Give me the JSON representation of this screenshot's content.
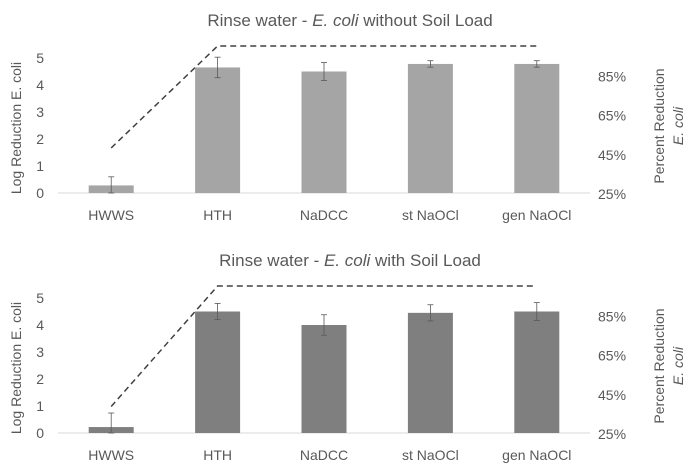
{
  "chart_data": [
    {
      "type": "bar",
      "title_prefix": "Rinse water - ",
      "title_italic": "E. coli",
      "title_suffix": " without Soil Load",
      "categories": [
        "HWWS",
        "HTH",
        "NaDCC",
        "st NaOCl",
        "gen NaOCl"
      ],
      "values": [
        0.28,
        4.65,
        4.5,
        4.78,
        4.78
      ],
      "errors": [
        0.32,
        0.38,
        0.33,
        0.12,
        0.12
      ],
      "bar_color": "#a5a5a5",
      "ylabel": "Log Reduction E. coli",
      "ylim": [
        0,
        5.5
      ],
      "yticks": [
        0,
        1,
        2,
        3,
        4,
        5
      ],
      "y2label_line1": "Percent Reduction",
      "y2label_line2": "E. coli",
      "y2lim": [
        25,
        101
      ],
      "y2ticks": [
        "25%",
        "45%",
        "65%",
        "85%"
      ],
      "y2tick_values": [
        25,
        45,
        65,
        85
      ],
      "line_series": {
        "name": "Percent Reduction",
        "style": "dashed",
        "values": [
          48,
          100,
          100,
          100,
          100
        ]
      }
    },
    {
      "type": "bar",
      "title_prefix": "Rinse water - ",
      "title_italic": "E. coli",
      "title_suffix": " with Soil Load",
      "categories": [
        "HWWS",
        "HTH",
        "NaDCC",
        "st NaOCl",
        "gen NaOCl"
      ],
      "values": [
        0.22,
        4.5,
        4.0,
        4.45,
        4.5
      ],
      "errors": [
        0.52,
        0.3,
        0.38,
        0.3,
        0.33
      ],
      "bar_color": "#7f7f7f",
      "ylabel": "Log Reduction E. coli",
      "ylim": [
        0,
        5.5
      ],
      "yticks": [
        0,
        1,
        2,
        3,
        4,
        5
      ],
      "y2label_line1": "Percent Reduction",
      "y2label_line2": "E. coli",
      "y2lim": [
        25,
        101
      ],
      "y2ticks": [
        "25%",
        "45%",
        "65%",
        "85%"
      ],
      "y2tick_values": [
        25,
        45,
        65,
        85
      ],
      "line_series": {
        "name": "Percent Reduction",
        "style": "dashed",
        "values": [
          38.5,
          100,
          100,
          100,
          100
        ]
      }
    }
  ]
}
